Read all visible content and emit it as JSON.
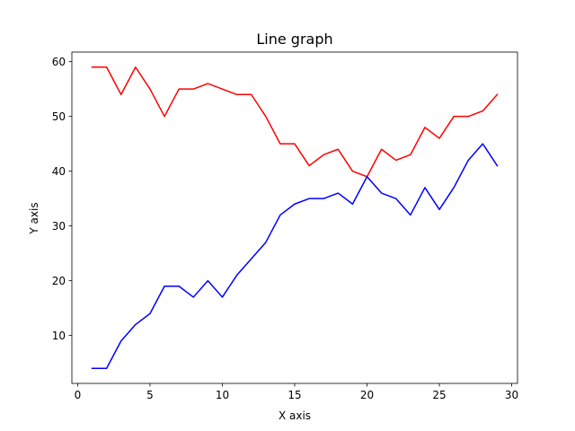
{
  "chart_data": {
    "type": "line",
    "title": "Line graph",
    "xlabel": "X axis",
    "ylabel": "Y axis",
    "xlim": [
      -0.4,
      30.4
    ],
    "ylim": [
      1.25,
      61.75
    ],
    "xticks": [
      0,
      5,
      10,
      15,
      20,
      25,
      30
    ],
    "yticks": [
      10,
      20,
      30,
      40,
      50,
      60
    ],
    "grid": false,
    "x": [
      1,
      2,
      3,
      4,
      5,
      6,
      7,
      8,
      9,
      10,
      11,
      12,
      13,
      14,
      15,
      16,
      17,
      18,
      19,
      20,
      21,
      22,
      23,
      24,
      25,
      26,
      27,
      28,
      29
    ],
    "series": [
      {
        "color": "#ff0000",
        "values": [
          59,
          59,
          54,
          59,
          55,
          50,
          55,
          55,
          56,
          55,
          54,
          54,
          50,
          45,
          45,
          41,
          43,
          44,
          40,
          39,
          44,
          42,
          43,
          48,
          46,
          50,
          50,
          51,
          54
        ]
      },
      {
        "color": "#0000ff",
        "values": [
          4,
          4,
          9,
          12,
          14,
          19,
          19,
          17,
          20,
          17,
          21,
          24,
          27,
          32,
          34,
          35,
          35,
          36,
          34,
          39,
          36,
          35,
          32,
          37,
          33,
          37,
          42,
          45,
          41
        ]
      }
    ]
  }
}
